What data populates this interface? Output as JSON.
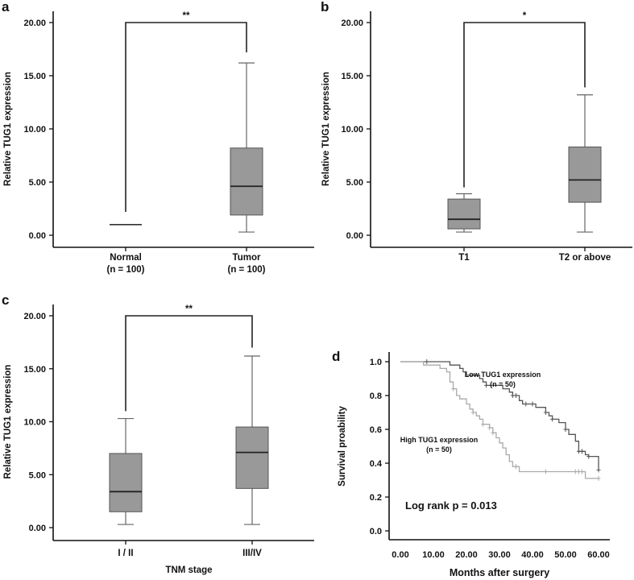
{
  "chart_data": [
    {
      "panel": "a",
      "type": "box",
      "ylabel": "Relative TUG1 expression",
      "yticks": [
        "0.00",
        "5.00",
        "10.00",
        "15.00",
        "20.00"
      ],
      "ylim": [
        0,
        20
      ],
      "categories": [
        [
          "Normal",
          "(n = 100)"
        ],
        [
          "Tumor",
          "(n = 100)"
        ]
      ],
      "boxes": [
        {
          "min": 1.0,
          "q1": 1.0,
          "median": 1.0,
          "q3": 1.0,
          "max": 1.0
        },
        {
          "min": 0.3,
          "q1": 1.9,
          "median": 4.6,
          "q3": 8.2,
          "max": 16.2
        }
      ],
      "significance": {
        "label": "**",
        "top": 20,
        "left_end": 2.2,
        "right_end": 17.2
      },
      "xlabel": ""
    },
    {
      "panel": "b",
      "type": "box",
      "ylabel": "Relative TUG1 expression",
      "yticks": [
        "0.00",
        "5.00",
        "10.00",
        "15.00",
        "20.00"
      ],
      "ylim": [
        0,
        20
      ],
      "categories": [
        [
          "T1"
        ],
        [
          "T2 or above"
        ]
      ],
      "boxes": [
        {
          "min": 0.3,
          "q1": 0.6,
          "median": 1.5,
          "q3": 3.4,
          "max": 3.9
        },
        {
          "min": 0.3,
          "q1": 3.1,
          "median": 5.2,
          "q3": 8.3,
          "max": 13.2
        }
      ],
      "significance": {
        "label": "*",
        "top": 20,
        "left_end": 4.5,
        "right_end": 13.9
      },
      "xlabel": ""
    },
    {
      "panel": "c",
      "type": "box",
      "ylabel": "Relative TUG1 expression",
      "yticks": [
        "0.00",
        "5.00",
        "10.00",
        "15.00",
        "20.00"
      ],
      "ylim": [
        0,
        20
      ],
      "categories": [
        [
          "I / II"
        ],
        [
          "III/IV"
        ]
      ],
      "boxes": [
        {
          "min": 0.3,
          "q1": 1.5,
          "median": 3.4,
          "q3": 7.0,
          "max": 10.3
        },
        {
          "min": 0.3,
          "q1": 3.7,
          "median": 7.1,
          "q3": 9.5,
          "max": 16.2
        }
      ],
      "significance": {
        "label": "**",
        "top": 20,
        "left_end": 11.0,
        "right_end": 17.0
      },
      "xlabel": "TNM stage"
    },
    {
      "panel": "d",
      "type": "line",
      "ylabel": "Survival proability",
      "xlabel": "Months after surgery",
      "yticks": [
        "0.0",
        "0.2",
        "0.4",
        "0.6",
        "0.8",
        "1.0"
      ],
      "ylim": [
        0,
        1
      ],
      "xticks": [
        "0.00",
        "10.00",
        "20.00",
        "30.00",
        "40.00",
        "50.00",
        "60.00"
      ],
      "xlim": [
        0,
        60
      ],
      "annotation": "Log rank p = 0.013",
      "series": [
        {
          "name": "Low TUG1 expression",
          "n_label": "(n = 50)",
          "color": "#555555",
          "steps": [
            [
              0,
              1
            ],
            [
              15,
              0.98
            ],
            [
              18,
              0.96
            ],
            [
              19,
              0.94
            ],
            [
              20,
              0.92
            ],
            [
              24,
              0.9
            ],
            [
              25,
              0.88
            ],
            [
              26,
              0.86
            ],
            [
              31,
              0.84
            ],
            [
              33,
              0.82
            ],
            [
              34,
              0.8
            ],
            [
              36,
              0.77
            ],
            [
              37,
              0.75
            ],
            [
              41,
              0.73
            ],
            [
              44,
              0.7
            ],
            [
              45,
              0.68
            ],
            [
              46,
              0.66
            ],
            [
              48,
              0.64
            ],
            [
              50,
              0.6
            ],
            [
              51,
              0.57
            ],
            [
              53,
              0.53
            ],
            [
              54,
              0.47
            ],
            [
              56,
              0.45
            ],
            [
              57,
              0.44
            ],
            [
              60,
              0.36
            ]
          ],
          "censored": [
            8,
            26,
            34,
            35,
            38,
            40,
            44,
            46,
            50,
            54,
            55,
            57,
            60
          ]
        },
        {
          "name": "High TUG1 expression",
          "n_label": "(n = 50)",
          "color": "#aaaaaa",
          "steps": [
            [
              0,
              1
            ],
            [
              7,
              0.98
            ],
            [
              12,
              0.96
            ],
            [
              14,
              0.94
            ],
            [
              15,
              0.88
            ],
            [
              16,
              0.84
            ],
            [
              17,
              0.8
            ],
            [
              18,
              0.78
            ],
            [
              20,
              0.75
            ],
            [
              21,
              0.72
            ],
            [
              22,
              0.7
            ],
            [
              23,
              0.68
            ],
            [
              24,
              0.66
            ],
            [
              25,
              0.63
            ],
            [
              27,
              0.61
            ],
            [
              28,
              0.58
            ],
            [
              29,
              0.55
            ],
            [
              30,
              0.52
            ],
            [
              31,
              0.49
            ],
            [
              32,
              0.45
            ],
            [
              33,
              0.41
            ],
            [
              34,
              0.38
            ],
            [
              36,
              0.35
            ],
            [
              56,
              0.31
            ],
            [
              60,
              0.31
            ]
          ],
          "censored": [
            16,
            22,
            25,
            27,
            28,
            35,
            44,
            53,
            54,
            55,
            60
          ]
        }
      ]
    }
  ]
}
